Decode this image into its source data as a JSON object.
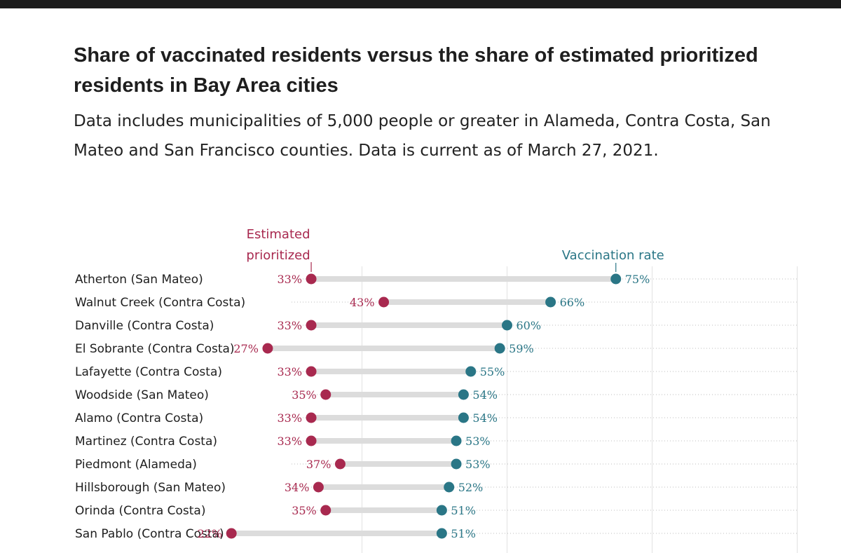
{
  "colors": {
    "prioritized": "#a8294f",
    "vaccination": "#2a7686",
    "track": "#dcdcdc",
    "grid": "#e2e2e2",
    "text": "#1e1e1e"
  },
  "chart_data": {
    "type": "dot-range",
    "title": "Share of vaccinated residents versus the share of estimated prioritized residents in Bay Area cities",
    "subtitle": "Data includes municipalities of 5,000 people or greater in Alameda, Contra Costa, San Mateo and San Francisco counties. Data is current as of March 27, 2021.",
    "legend": {
      "prioritized": "Estimated prioritized",
      "vaccination": "Vaccination rate"
    },
    "xlim": [
      0,
      100
    ],
    "unit": "%",
    "rows": [
      {
        "city": "Atherton (San Mateo)",
        "prioritized": 33,
        "vaccination": 75
      },
      {
        "city": "Walnut Creek (Contra Costa)",
        "prioritized": 43,
        "vaccination": 66
      },
      {
        "city": "Danville (Contra Costa)",
        "prioritized": 33,
        "vaccination": 60
      },
      {
        "city": "El Sobrante (Contra Costa)",
        "prioritized": 27,
        "vaccination": 59
      },
      {
        "city": "Lafayette (Contra Costa)",
        "prioritized": 33,
        "vaccination": 55
      },
      {
        "city": "Woodside (San Mateo)",
        "prioritized": 35,
        "vaccination": 54
      },
      {
        "city": "Alamo (Contra Costa)",
        "prioritized": 33,
        "vaccination": 54
      },
      {
        "city": "Martinez (Contra Costa)",
        "prioritized": 33,
        "vaccination": 53
      },
      {
        "city": "Piedmont (Alameda)",
        "prioritized": 37,
        "vaccination": 53
      },
      {
        "city": "Hillsborough (San Mateo)",
        "prioritized": 34,
        "vaccination": 52
      },
      {
        "city": "Orinda (Contra Costa)",
        "prioritized": 35,
        "vaccination": 51
      },
      {
        "city": "San Pablo (Contra Costa)",
        "prioritized": 22,
        "vaccination": 51
      }
    ]
  }
}
